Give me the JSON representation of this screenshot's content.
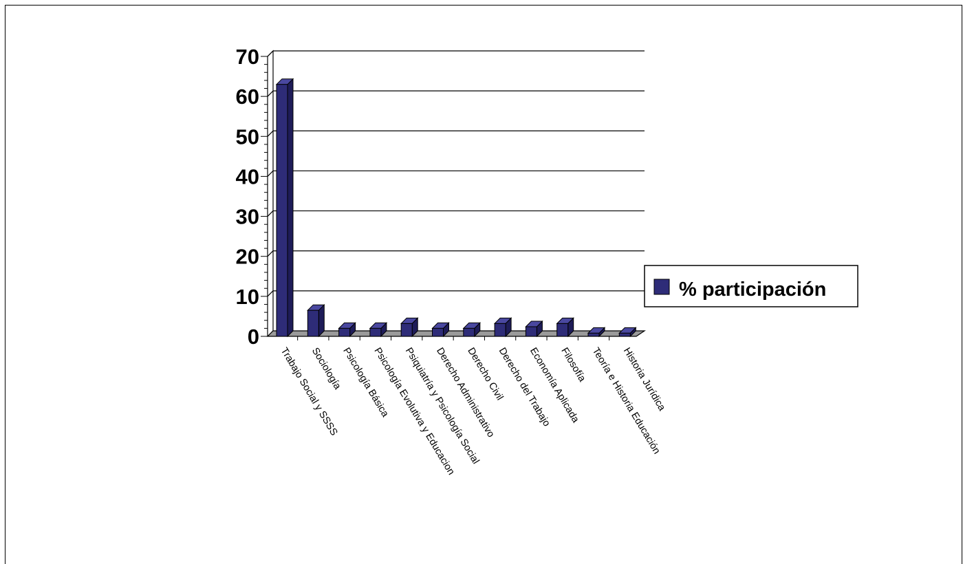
{
  "chart_data": {
    "type": "bar",
    "categories": [
      "Trabajo Social y SSSS",
      "Sociología",
      "Psicología Básica",
      "Psicología Evolutiva y Educacion",
      "Psiquiatría y Psicología Social",
      "Derecho Administrativo",
      "Derecho Civil",
      "Derecho del Trabajo",
      "Economía Aplicada",
      "Filosofía",
      "Teoría e Historia Educación",
      "Historia Jurídica"
    ],
    "series": [
      {
        "name": "% participación",
        "color": "#2e2c78",
        "values": [
          63,
          6.5,
          2,
          2,
          3.2,
          2,
          2,
          3.2,
          2.4,
          3.2,
          0.8,
          0.8
        ]
      }
    ],
    "ylim": [
      0,
      70
    ],
    "yticks": [
      "0",
      "10",
      "20",
      "30",
      "40",
      "50",
      "60",
      "70"
    ],
    "grid": true,
    "legend": "right",
    "style": "3d-bar"
  }
}
